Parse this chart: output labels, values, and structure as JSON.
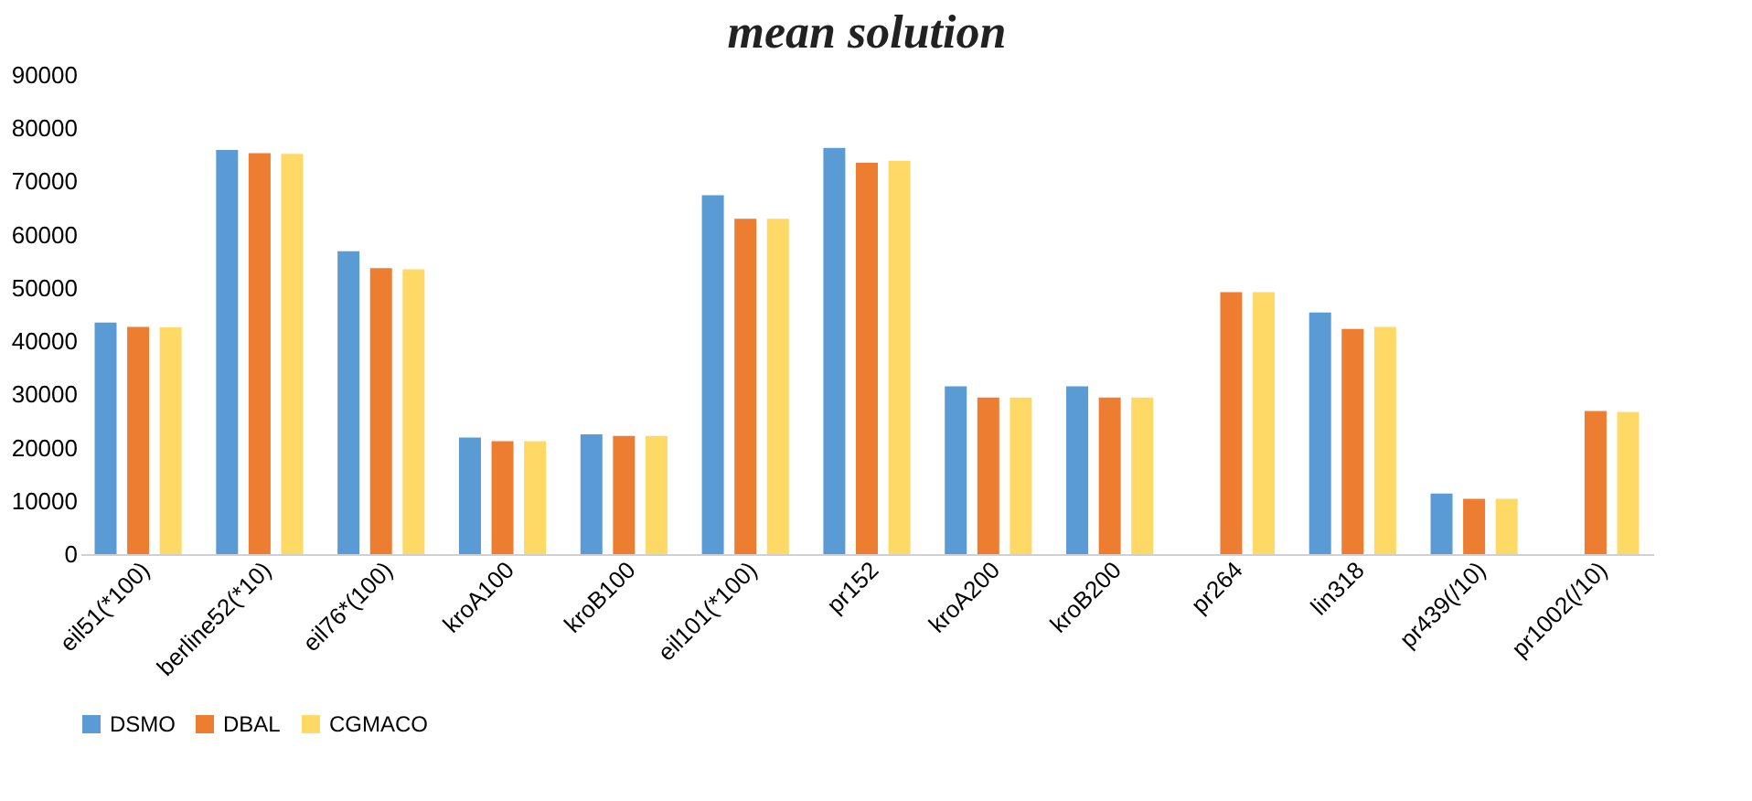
{
  "chart_data": {
    "type": "bar",
    "title": "mean solution",
    "categories": [
      "eil51(*100)",
      "berline52(*10)",
      "eil76*(100)",
      "kroA100",
      "kroB100",
      "eil101(*100)",
      "pr152",
      "kroA200",
      "kroB200",
      "pr264",
      "lin318",
      "pr439(/10)",
      "pr1002(/10)"
    ],
    "series": [
      {
        "name": "DSMO",
        "color": "#5b9bd5",
        "values": [
          43500,
          75900,
          56900,
          21900,
          22500,
          67400,
          76300,
          31500,
          31500,
          null,
          45400,
          11400,
          null
        ]
      },
      {
        "name": "DBAL",
        "color": "#ed7d31",
        "values": [
          42700,
          75300,
          53700,
          21200,
          22200,
          63000,
          73500,
          29400,
          29400,
          49200,
          42300,
          10400,
          26900
        ]
      },
      {
        "name": "CGMACO",
        "color": "#ffd966",
        "values": [
          42600,
          75200,
          53500,
          21200,
          22200,
          63000,
          73900,
          29400,
          29400,
          49200,
          42700,
          10400,
          26700
        ]
      }
    ],
    "ylim": [
      0,
      90000
    ],
    "yticks": [
      0,
      10000,
      20000,
      30000,
      40000,
      50000,
      60000,
      70000,
      80000,
      90000
    ],
    "grid": false,
    "legend": "bottom"
  }
}
